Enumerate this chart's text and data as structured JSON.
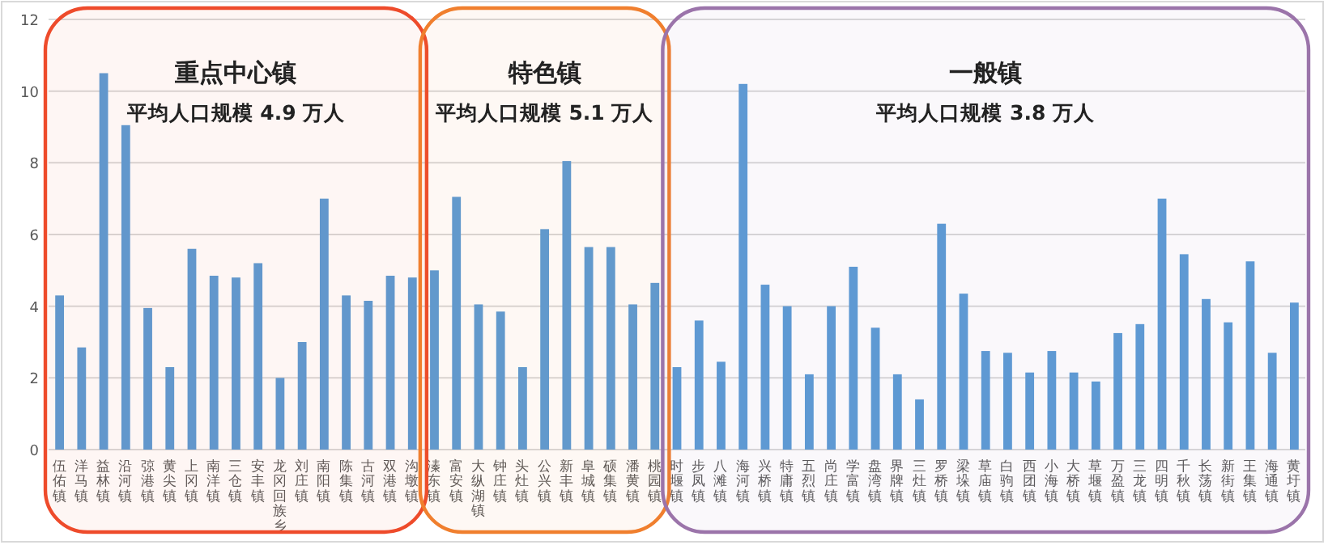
{
  "chart_data": {
    "type": "bar",
    "categories": [
      "伍佑镇",
      "洋马镇",
      "益林镇",
      "沿河镇",
      "弶港镇",
      "黄尖镇",
      "上冈镇",
      "南洋镇",
      "三仓镇",
      "安丰镇",
      "龙冈回族乡",
      "刘庄镇",
      "南阳镇",
      "陈集镇",
      "古河镇",
      "双港镇",
      "沟墩镇",
      "溱东镇",
      "富安镇",
      "大纵湖镇",
      "钟庄镇",
      "头灶镇",
      "公兴镇",
      "新丰镇",
      "阜城镇",
      "硕集镇",
      "潘黄镇",
      "桃园镇",
      "时堰镇",
      "步凤镇",
      "八滩镇",
      "海河镇",
      "兴桥镇",
      "特庸镇",
      "五烈镇",
      "尚庄镇",
      "学富镇",
      "盘湾镇",
      "界牌镇",
      "三灶镇",
      "罗桥镇",
      "梁垛镇",
      "草庙镇",
      "白驹镇",
      "西团镇",
      "小海镇",
      "大桥镇",
      "草堰镇",
      "万盈镇",
      "三龙镇",
      "四明镇",
      "千秋镇",
      "长荡镇",
      "新街镇",
      "王集镇",
      "海通镇",
      "黄圩镇"
    ],
    "values": [
      4.3,
      2.85,
      10.5,
      9.05,
      3.95,
      2.3,
      5.6,
      4.85,
      4.8,
      5.2,
      2.0,
      3.0,
      7.0,
      4.3,
      4.15,
      4.85,
      4.8,
      5.0,
      7.05,
      4.05,
      3.85,
      2.3,
      6.15,
      8.05,
      5.65,
      5.65,
      4.05,
      4.65,
      2.3,
      3.6,
      2.45,
      10.2,
      4.6,
      4.0,
      2.1,
      4.0,
      5.1,
      3.4,
      2.1,
      1.4,
      6.3,
      4.35,
      2.75,
      2.7,
      2.15,
      2.75,
      2.15,
      1.9,
      3.25,
      3.5,
      7.0,
      5.45,
      4.2,
      3.55,
      5.25,
      2.7,
      4.1
    ],
    "color": "#5b9bd5",
    "ylim": [
      0,
      12
    ],
    "yticks": [
      0,
      2,
      4,
      6,
      8,
      10,
      12
    ],
    "grid": "y",
    "bands": [
      {
        "axis": "x",
        "from": "伍佑镇",
        "to": "沟墩镇",
        "label": "重点中心镇",
        "color": "#ee4b2b"
      },
      {
        "axis": "x",
        "from": "溱东镇",
        "to": "桃园镇",
        "label": "特色镇",
        "color": "#f07f2e"
      },
      {
        "axis": "x",
        "from": "时堰镇",
        "to": "黄圩镇",
        "label": "一般镇",
        "color": "#9b74aa"
      }
    ],
    "annotations": [
      "平均人口规模 4.9 万人",
      "平均人口规模 5.1 万人",
      "平均人口规模 3.8 万人"
    ]
  }
}
